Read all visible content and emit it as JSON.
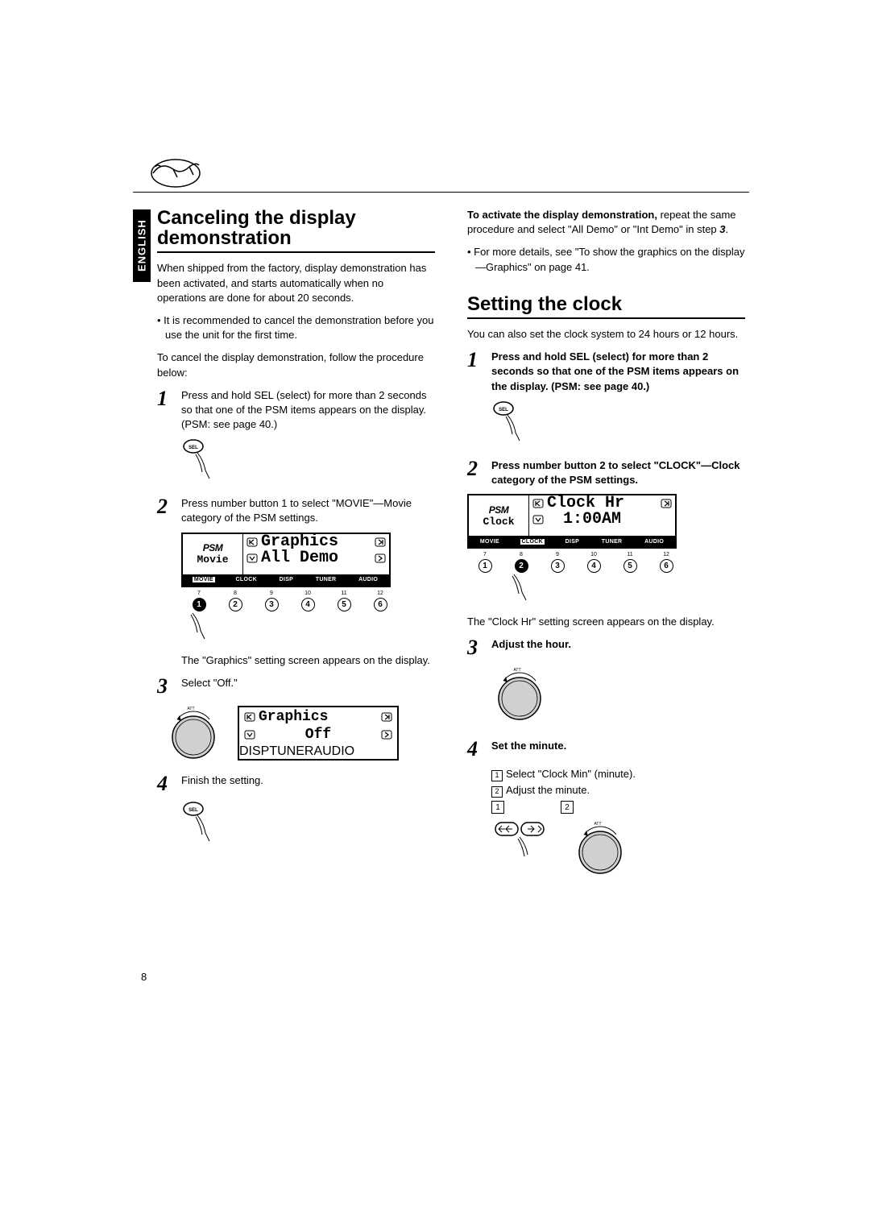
{
  "sideTab": "ENGLISH",
  "pageNumber": "8",
  "left": {
    "heading": "Canceling the display demonstration",
    "intro": "When shipped from the factory, display demonstration has been activated, and starts automatically when no operations are done for about 20 seconds.",
    "note": "• It is recommended to cancel the demonstration before you use the unit for the first time.",
    "lead": "To cancel the display demonstration, follow the procedure below:",
    "step1": "Press and hold SEL (select) for more than 2 seconds so that one of the PSM items appears on the display. (PSM: see page 40.)",
    "step2": "Press number button 1 to select \"MOVIE\"—Movie category of the PSM settings.",
    "screen1": {
      "psm": "PSM",
      "category": "Movie",
      "line1": "Graphics",
      "line2": "All Demo",
      "tabs": [
        "MOVIE",
        "CLOCK",
        "DISP",
        "TUNER",
        "AUDIO"
      ],
      "activeTab": 0,
      "topNums": [
        "7",
        "8",
        "9",
        "10",
        "11",
        "12"
      ],
      "btns": [
        "1",
        "2",
        "3",
        "4",
        "5",
        "6"
      ],
      "selected": 0
    },
    "afterScreen1": "The \"Graphics\" setting screen appears on the display.",
    "step3": "Select \"Off.\"",
    "screen2": {
      "line1": "Graphics",
      "line2": "Off",
      "tabs": [
        "DISP",
        "TUNER",
        "AUDIO"
      ]
    },
    "step4": "Finish the setting."
  },
  "right": {
    "activateBold": "To activate the display demonstration,",
    "activateRest": " repeat the same procedure and select \"All Demo\" or \"Int Demo\" in step ",
    "activateStep": "3",
    "activateEnd": ".",
    "moreDetails": "• For more details, see \"To show the graphics on the display—Graphics\" on page 41.",
    "heading": "Setting the clock",
    "intro": "You can also set the clock system to 24 hours or 12 hours.",
    "step1": "Press and hold SEL (select) for more than 2 seconds so that one of the PSM items appears on the display. (PSM: see page 40.)",
    "step2a": "Press number button 2 to select \"CLOCK\"",
    "step2b": "—Clock category of the PSM settings.",
    "screen": {
      "psm": "PSM",
      "category": "Clock",
      "line1": "Clock Hr",
      "line2": "1:00AM",
      "tabs": [
        "MOVIE",
        "CLOCK",
        "DISP",
        "TUNER",
        "AUDIO"
      ],
      "activeTab": 1,
      "topNums": [
        "7",
        "8",
        "9",
        "10",
        "11",
        "12"
      ],
      "btns": [
        "1",
        "2",
        "3",
        "4",
        "5",
        "6"
      ],
      "selected": 1
    },
    "afterScreen": "The \"Clock Hr\" setting screen appears on the display.",
    "step3": "Adjust the hour.",
    "step4": "Set the minute.",
    "step4sub1": "Select \"Clock Min\" (minute).",
    "step4sub2": "Adjust the minute.",
    "box1": "1",
    "box2": "2"
  },
  "colors": {
    "black": "#000000",
    "white": "#ffffff",
    "dialFill": "#d0d0d0"
  }
}
